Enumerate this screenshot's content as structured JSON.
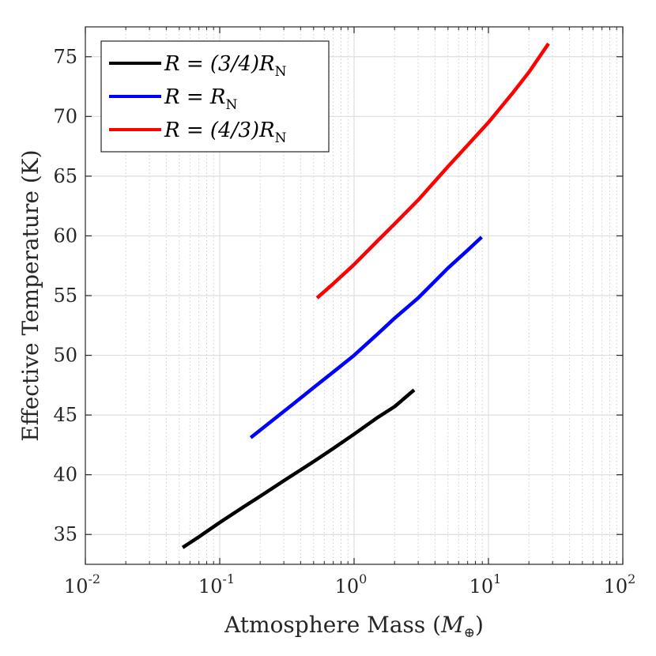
{
  "chart_data": {
    "type": "line",
    "title": "",
    "xlabel": "Atmosphere Mass (M⊕)",
    "xlabel_parts": {
      "main": "Atmosphere Mass (",
      "var": "M",
      "sub": "⊕",
      "close": ")"
    },
    "ylabel": "Effective Temperature (K)",
    "xscale": "log",
    "xlim": [
      0.01,
      100
    ],
    "ylim": [
      32.5,
      77.5
    ],
    "xticks": [
      {
        "value": 0.01,
        "base": "10",
        "exp": "-2"
      },
      {
        "value": 0.1,
        "base": "10",
        "exp": "-1"
      },
      {
        "value": 1,
        "base": "10",
        "exp": "0"
      },
      {
        "value": 10,
        "base": "10",
        "exp": "1"
      },
      {
        "value": 100,
        "base": "10",
        "exp": "2"
      }
    ],
    "yticks": [
      35,
      40,
      45,
      50,
      55,
      60,
      65,
      70,
      75
    ],
    "grid": true,
    "minor_grid": true,
    "legend_position": "top-left",
    "series": [
      {
        "name": "R = (3/4)R_N",
        "label_main": "R = (3/4)R",
        "label_sub": "N",
        "color": "#000000",
        "x": [
          0.053,
          0.07,
          0.1,
          0.15,
          0.2,
          0.3,
          0.5,
          0.7,
          1.0,
          1.5,
          2.0,
          2.8
        ],
        "y": [
          33.9,
          34.8,
          36.0,
          37.3,
          38.2,
          39.5,
          41.1,
          42.2,
          43.4,
          44.8,
          45.7,
          47.1
        ]
      },
      {
        "name": "R = R_N",
        "label_main": "R = R",
        "label_sub": "N",
        "color": "#0000ff",
        "x": [
          0.17,
          0.25,
          0.35,
          0.5,
          0.7,
          1.0,
          1.5,
          2.0,
          3.0,
          5.0,
          7.0,
          8.9
        ],
        "y": [
          43.1,
          44.6,
          45.9,
          47.3,
          48.6,
          50.0,
          51.8,
          53.1,
          54.8,
          57.3,
          58.8,
          59.9
        ]
      },
      {
        "name": "R = (4/3)R_N",
        "label_main": "R = (4/3)R",
        "label_sub": "N",
        "color": "#ff0000",
        "x": [
          0.53,
          0.7,
          1.0,
          1.5,
          2.0,
          3.0,
          5.0,
          7.0,
          10.0,
          15.0,
          20.0,
          28.0
        ],
        "y": [
          54.8,
          56.0,
          57.6,
          59.6,
          61.0,
          63.0,
          65.8,
          67.6,
          69.5,
          71.9,
          73.7,
          76.1
        ]
      }
    ]
  }
}
